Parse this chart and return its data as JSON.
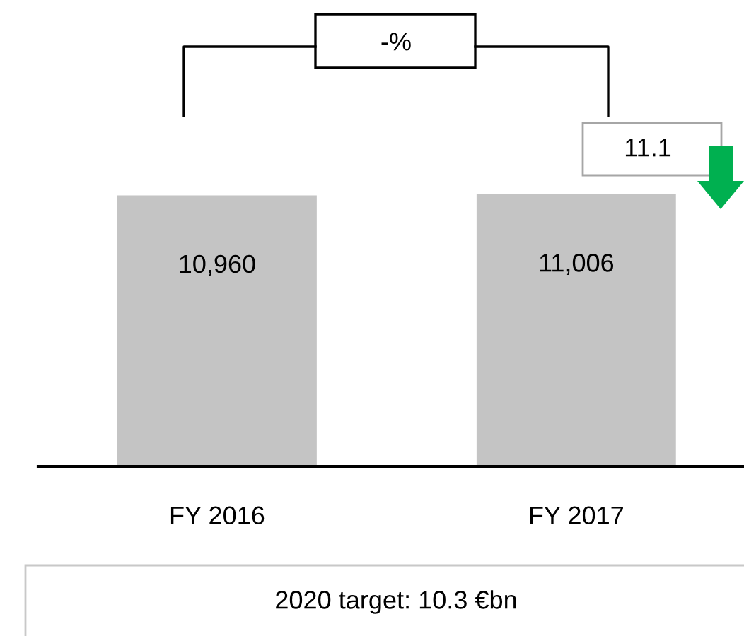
{
  "chart_data": {
    "type": "bar",
    "categories": [
      "FY 2016",
      "FY 2017"
    ],
    "values": [
      10960,
      11006
    ],
    "color": "#c4c4c4",
    "value_labels": [
      "10,960",
      "11,006"
    ],
    "tick_labels": "x",
    "grid": false,
    "legend": false,
    "annotations": [
      "-%",
      "11.1",
      "2020 target: 10.3 €bn"
    ]
  }
}
